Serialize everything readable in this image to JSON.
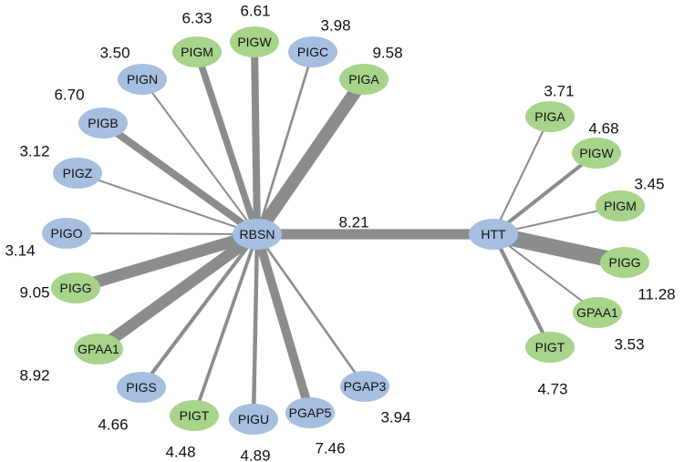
{
  "colors": {
    "blue": "#a6bedf",
    "green": "#a8d38b",
    "edge": "#8c8c8c"
  },
  "nodes": [
    {
      "id": "RBSN",
      "label": "RBSN",
      "color": "blue"
    },
    {
      "id": "HTT",
      "label": "HTT",
      "color": "blue"
    },
    {
      "id": "PIGM_R",
      "label": "PIGM",
      "color": "green"
    },
    {
      "id": "PIGW_R",
      "label": "PIGW",
      "color": "green"
    },
    {
      "id": "PIGC",
      "label": "PIGC",
      "color": "blue"
    },
    {
      "id": "PIGA_R",
      "label": "PIGA",
      "color": "green"
    },
    {
      "id": "PIGN",
      "label": "PIGN",
      "color": "blue"
    },
    {
      "id": "PIGB",
      "label": "PIGB",
      "color": "blue"
    },
    {
      "id": "PIGZ",
      "label": "PIGZ",
      "color": "blue"
    },
    {
      "id": "PIGO",
      "label": "PIGO",
      "color": "blue"
    },
    {
      "id": "PIGG_R",
      "label": "PIGG",
      "color": "green"
    },
    {
      "id": "GPAA1_R",
      "label": "GPAA1",
      "color": "green"
    },
    {
      "id": "PIGS",
      "label": "PIGS",
      "color": "blue"
    },
    {
      "id": "PIGT_R",
      "label": "PIGT",
      "color": "green"
    },
    {
      "id": "PIGU",
      "label": "PIGU",
      "color": "blue"
    },
    {
      "id": "PGAP5",
      "label": "PGAP5",
      "color": "blue"
    },
    {
      "id": "PGAP3",
      "label": "PGAP3",
      "color": "blue"
    },
    {
      "id": "PIGA_H",
      "label": "PIGA",
      "color": "green"
    },
    {
      "id": "PIGW_H",
      "label": "PIGW",
      "color": "green"
    },
    {
      "id": "PIGM_H",
      "label": "PIGM",
      "color": "green"
    },
    {
      "id": "PIGG_H",
      "label": "PIGG",
      "color": "green"
    },
    {
      "id": "GPAA1_H",
      "label": "GPAA1",
      "color": "green"
    },
    {
      "id": "PIGT_H",
      "label": "PIGT",
      "color": "green"
    }
  ],
  "edges": [
    {
      "source": "RBSN",
      "target": "HTT",
      "weight": "8.21"
    },
    {
      "source": "RBSN",
      "target": "PIGM_R",
      "weight": "6.33"
    },
    {
      "source": "RBSN",
      "target": "PIGW_R",
      "weight": "6.61"
    },
    {
      "source": "RBSN",
      "target": "PIGC",
      "weight": "3.98"
    },
    {
      "source": "RBSN",
      "target": "PIGA_R",
      "weight": "9.58"
    },
    {
      "source": "RBSN",
      "target": "PIGN",
      "weight": "3.50"
    },
    {
      "source": "RBSN",
      "target": "PIGB",
      "weight": "6.70"
    },
    {
      "source": "RBSN",
      "target": "PIGZ",
      "weight": "3.12"
    },
    {
      "source": "RBSN",
      "target": "PIGO",
      "weight": "3.14"
    },
    {
      "source": "RBSN",
      "target": "PIGG_R",
      "weight": "9.05"
    },
    {
      "source": "RBSN",
      "target": "GPAA1_R",
      "weight": "8.92"
    },
    {
      "source": "RBSN",
      "target": "PIGS",
      "weight": "4.66"
    },
    {
      "source": "RBSN",
      "target": "PIGT_R",
      "weight": "4.48"
    },
    {
      "source": "RBSN",
      "target": "PIGU",
      "weight": "4.89"
    },
    {
      "source": "RBSN",
      "target": "PGAP5",
      "weight": "7.46"
    },
    {
      "source": "RBSN",
      "target": "PGAP3",
      "weight": "3.94"
    },
    {
      "source": "HTT",
      "target": "PIGA_H",
      "weight": "3.71"
    },
    {
      "source": "HTT",
      "target": "PIGW_H",
      "weight": "4.68"
    },
    {
      "source": "HTT",
      "target": "PIGM_H",
      "weight": "3.45"
    },
    {
      "source": "HTT",
      "target": "PIGG_H",
      "weight": "11.28"
    },
    {
      "source": "HTT",
      "target": "GPAA1_H",
      "weight": "3.53"
    },
    {
      "source": "HTT",
      "target": "PIGT_H",
      "weight": "4.73"
    }
  ]
}
